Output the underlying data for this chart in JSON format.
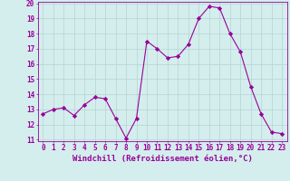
{
  "x": [
    0,
    1,
    2,
    3,
    4,
    5,
    6,
    7,
    8,
    9,
    10,
    11,
    12,
    13,
    14,
    15,
    16,
    17,
    18,
    19,
    20,
    21,
    22,
    23
  ],
  "y": [
    12.7,
    13.0,
    13.1,
    12.6,
    13.3,
    13.8,
    13.7,
    12.4,
    11.1,
    12.4,
    17.5,
    17.0,
    16.4,
    16.5,
    17.3,
    19.0,
    19.8,
    19.7,
    18.0,
    16.8,
    14.5,
    12.7,
    11.5,
    11.4
  ],
  "line_color": "#990099",
  "marker": "D",
  "marker_size": 2.2,
  "bg_color": "#d4eeed",
  "grid_color": "#b8d8d7",
  "xlabel": "Windchill (Refroidissement éolien,°C)",
  "ylim": [
    11,
    20
  ],
  "xlim": [
    -0.5,
    23.5
  ],
  "yticks": [
    11,
    12,
    13,
    14,
    15,
    16,
    17,
    18,
    19,
    20
  ],
  "xticks": [
    0,
    1,
    2,
    3,
    4,
    5,
    6,
    7,
    8,
    9,
    10,
    11,
    12,
    13,
    14,
    15,
    16,
    17,
    18,
    19,
    20,
    21,
    22,
    23
  ],
  "tick_label_color": "#990099",
  "axis_color": "#990099",
  "label_fontsize": 6.5,
  "tick_fontsize": 5.5
}
